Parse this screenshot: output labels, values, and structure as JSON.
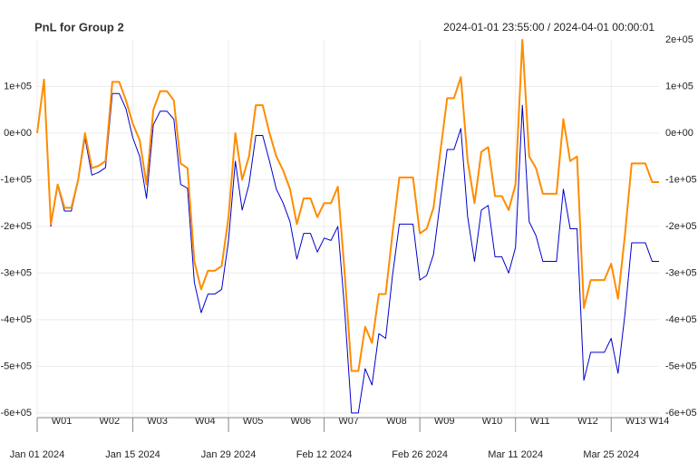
{
  "chart_data": {
    "type": "line",
    "title": "PnL for Group 2",
    "subtitle": "2024-01-01 23:55:00 / 2024-04-01 00:00:01",
    "x": [
      "2024-01-01",
      "2024-01-02",
      "2024-01-03",
      "2024-01-04",
      "2024-01-05",
      "2024-01-06",
      "2024-01-07",
      "2024-01-08",
      "2024-01-09",
      "2024-01-10",
      "2024-01-11",
      "2024-01-12",
      "2024-01-13",
      "2024-01-14",
      "2024-01-15",
      "2024-01-16",
      "2024-01-17",
      "2024-01-18",
      "2024-01-19",
      "2024-01-20",
      "2024-01-21",
      "2024-01-22",
      "2024-01-23",
      "2024-01-24",
      "2024-01-25",
      "2024-01-26",
      "2024-01-27",
      "2024-01-28",
      "2024-01-29",
      "2024-01-30",
      "2024-01-31",
      "2024-02-01",
      "2024-02-02",
      "2024-02-03",
      "2024-02-04",
      "2024-02-05",
      "2024-02-06",
      "2024-02-07",
      "2024-02-08",
      "2024-02-09",
      "2024-02-10",
      "2024-02-11",
      "2024-02-12",
      "2024-02-13",
      "2024-02-14",
      "2024-02-15",
      "2024-02-16",
      "2024-02-17",
      "2024-02-18",
      "2024-02-19",
      "2024-02-20",
      "2024-02-21",
      "2024-02-22",
      "2024-02-23",
      "2024-02-24",
      "2024-02-25",
      "2024-02-26",
      "2024-02-27",
      "2024-02-28",
      "2024-02-29",
      "2024-03-01",
      "2024-03-02",
      "2024-03-03",
      "2024-03-04",
      "2024-03-05",
      "2024-03-06",
      "2024-03-07",
      "2024-03-08",
      "2024-03-09",
      "2024-03-10",
      "2024-03-11",
      "2024-03-12",
      "2024-03-13",
      "2024-03-14",
      "2024-03-15",
      "2024-03-16",
      "2024-03-17",
      "2024-03-18",
      "2024-03-19",
      "2024-03-20",
      "2024-03-21",
      "2024-03-22",
      "2024-03-23",
      "2024-03-24",
      "2024-03-25",
      "2024-03-26",
      "2024-03-27",
      "2024-03-28",
      "2024-03-29",
      "2024-03-30",
      "2024-03-31",
      "2024-04-01"
    ],
    "series": [
      {
        "color": "#0000cd",
        "width": 1,
        "values": [
          0,
          115000,
          -200000,
          -113000,
          -167000,
          -167000,
          -103000,
          -10000,
          -90000,
          -84000,
          -74000,
          85000,
          85000,
          52000,
          -10000,
          -50000,
          -140000,
          18000,
          47000,
          47000,
          30000,
          -110000,
          -118000,
          -320000,
          -385000,
          -345000,
          -345000,
          -335000,
          -230000,
          -60000,
          -165000,
          -110000,
          -5000,
          -5000,
          -60000,
          -120000,
          -150000,
          -190000,
          -270000,
          -215000,
          -215000,
          -255000,
          -225000,
          -230000,
          -200000,
          -380000,
          -600000,
          -600000,
          -505000,
          -540000,
          -430000,
          -440000,
          -305000,
          -195000,
          -195000,
          -195000,
          -315000,
          -305000,
          -260000,
          -145000,
          -35000,
          -35000,
          10000,
          -180000,
          -275000,
          -165000,
          -155000,
          -265000,
          -265000,
          -300000,
          -245000,
          60000,
          -190000,
          -220000,
          -275000,
          -275000,
          -275000,
          -120000,
          -205000,
          -205000,
          -530000,
          -470000,
          -470000,
          -470000,
          -440000,
          -515000,
          -390000,
          -235000,
          -235000,
          -235000,
          -275000,
          -275000
        ]
      },
      {
        "color": "#ff8c00",
        "width": 2,
        "values": [
          0,
          115000,
          -195000,
          -110000,
          -160000,
          -160000,
          -100000,
          0,
          -75000,
          -70000,
          -60000,
          110000,
          110000,
          70000,
          20000,
          -15000,
          -110000,
          50000,
          90000,
          90000,
          70000,
          -65000,
          -75000,
          -275000,
          -335000,
          -295000,
          -295000,
          -285000,
          -180000,
          0,
          -100000,
          -50000,
          60000,
          60000,
          0,
          -50000,
          -80000,
          -120000,
          -195000,
          -140000,
          -140000,
          -180000,
          -150000,
          -150000,
          -115000,
          -300000,
          -510000,
          -510000,
          -415000,
          -450000,
          -345000,
          -345000,
          -215000,
          -95000,
          -95000,
          -95000,
          -215000,
          -205000,
          -160000,
          -40000,
          75000,
          75000,
          120000,
          -60000,
          -150000,
          -40000,
          -30000,
          -135000,
          -135000,
          -165000,
          -110000,
          200000,
          -50000,
          -75000,
          -130000,
          -130000,
          -130000,
          30000,
          -60000,
          -50000,
          -375000,
          -315000,
          -315000,
          -315000,
          -280000,
          -355000,
          -220000,
          -65000,
          -65000,
          -65000,
          -105000,
          -105000
        ]
      }
    ],
    "xlim": [
      "2024-01-01",
      "2024-04-01"
    ],
    "xticks": [
      {
        "value": "2024-01-01",
        "label": "Jan 01 2024"
      },
      {
        "value": "2024-01-15",
        "label": "Jan 15 2024"
      },
      {
        "value": "2024-01-29",
        "label": "Jan 29 2024"
      },
      {
        "value": "2024-02-12",
        "label": "Feb 12 2024"
      },
      {
        "value": "2024-02-26",
        "label": "Feb 26 2024"
      },
      {
        "value": "2024-03-11",
        "label": "Mar 11 2024"
      },
      {
        "value": "2024-03-25",
        "label": "Mar 25 2024"
      }
    ],
    "week_ticks": [
      {
        "value": "2024-01-04T14:00",
        "label": "W01"
      },
      {
        "value": "2024-01-11T14:00",
        "label": "W02"
      },
      {
        "value": "2024-01-18T14:00",
        "label": "W03"
      },
      {
        "value": "2024-01-25T14:00",
        "label": "W04"
      },
      {
        "value": "2024-02-01T14:00",
        "label": "W05"
      },
      {
        "value": "2024-02-08T14:00",
        "label": "W06"
      },
      {
        "value": "2024-02-15T14:00",
        "label": "W07"
      },
      {
        "value": "2024-02-22T14:00",
        "label": "W08"
      },
      {
        "value": "2024-02-29T14:00",
        "label": "W09"
      },
      {
        "value": "2024-03-07T14:00",
        "label": "W10"
      },
      {
        "value": "2024-03-14T14:00",
        "label": "W11"
      },
      {
        "value": "2024-03-21T14:00",
        "label": "W12"
      },
      {
        "value": "2024-03-28T14:00",
        "label": "W13"
      },
      {
        "value": "2024-04-01T00:00",
        "label": "W14"
      }
    ],
    "ylim": [
      -610000,
      200000
    ],
    "yticks": [
      {
        "value": -600000,
        "label": "-6e+05"
      },
      {
        "value": -500000,
        "label": "-5e+05"
      },
      {
        "value": -400000,
        "label": "-4e+05"
      },
      {
        "value": -300000,
        "label": "-3e+05"
      },
      {
        "value": -200000,
        "label": "-2e+05"
      },
      {
        "value": -100000,
        "label": "-1e+05"
      },
      {
        "value": 0,
        "label": "0e+00"
      },
      {
        "value": 100000,
        "label": "1e+05"
      }
    ],
    "y2lim": [
      -610000,
      200000
    ],
    "y2ticks": [
      {
        "value": -600000,
        "label": "-6e+05"
      },
      {
        "value": -500000,
        "label": "-5e+05"
      },
      {
        "value": -400000,
        "label": "-4e+05"
      },
      {
        "value": -300000,
        "label": "-3e+05"
      },
      {
        "value": -200000,
        "label": "-2e+05"
      },
      {
        "value": -100000,
        "label": "-1e+05"
      },
      {
        "value": 0,
        "label": "0e+00"
      },
      {
        "value": 100000,
        "label": "1e+05"
      },
      {
        "value": 200000,
        "label": "2e+05"
      }
    ],
    "grid": true
  }
}
